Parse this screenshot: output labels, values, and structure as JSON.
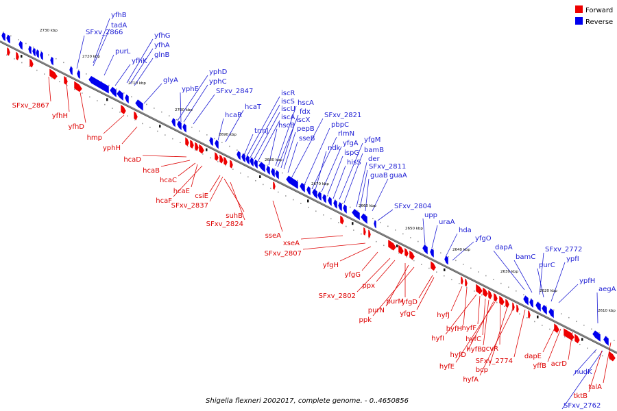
{
  "caption": "Shigella flexneri 2002017, complete genome. - 0..4650856",
  "legend": [
    {
      "label": "Forward",
      "color": "#ee0000"
    },
    {
      "label": "Reverse",
      "color": "#0000ee"
    }
  ],
  "colors": {
    "forward": "#ee0000",
    "reverse": "#0000ee",
    "forward_label": "#dd0000",
    "reverse_label": "#1c1cd4",
    "backbone": "#808080"
  },
  "kbp_labels": [
    "2730 kbp",
    "2720 kbp",
    "2710 kbp",
    "2700 kbp",
    "2690 kbp",
    "2680 kbp",
    "2670 kbp",
    "2660 kbp",
    "2650 kbp",
    "2640 kbp",
    "2630 kbp",
    "2620 kbp",
    "2610 kbp"
  ],
  "reverse_genes": [
    "yfhB",
    "tadA",
    "SFxv_2866",
    "yfhG",
    "yfhA",
    "glnB",
    "purL",
    "yfhK",
    "glyA",
    "yphD",
    "yphE",
    "yphC",
    "SFxv_2847",
    "hcaR",
    "hcaT",
    "iscR",
    "iscS",
    "iscU",
    "iscA",
    "hscB",
    "hscA",
    "fdx",
    "iscX",
    "pepB",
    "sseB",
    "trmJ",
    "SFxv_2821",
    "pbpC",
    "rlmN",
    "ndk",
    "yfgA",
    "ispG",
    "hisS",
    "yfgM",
    "bamB",
    "der",
    "SFxv_2811",
    "guaB",
    "guaA",
    "SFxv_2804",
    "upp",
    "uraA",
    "hda",
    "yfgO",
    "dapA",
    "bamC",
    "SFxv_2772",
    "purC",
    "ypfI",
    "ypfH",
    "aegA",
    "nudK",
    "SFxv_2762"
  ],
  "forward_genes": [
    "SFxv_2867",
    "yfhH",
    "yfhD",
    "hmp",
    "yphH",
    "hcaD",
    "hcaB",
    "hcaC",
    "hcaE",
    "hcaF",
    "csiE",
    "SFxv_2837",
    "suhB",
    "SFxv_2824",
    "sseA",
    "xseA",
    "SFxv_2807",
    "yfgH",
    "yfgG",
    "SFxv_2802",
    "ppx",
    "purM",
    "purN",
    "ppk",
    "yfgD",
    "yfgC",
    "hyfJ",
    "hyfH",
    "hyfF",
    "hyfI",
    "hyfC",
    "hyfB",
    "gcvR",
    "hyfD",
    "hyfE",
    "SFxv_2774",
    "bcp",
    "hyfA",
    "dapE",
    "yffB",
    "acrD",
    "talA",
    "tktB"
  ]
}
